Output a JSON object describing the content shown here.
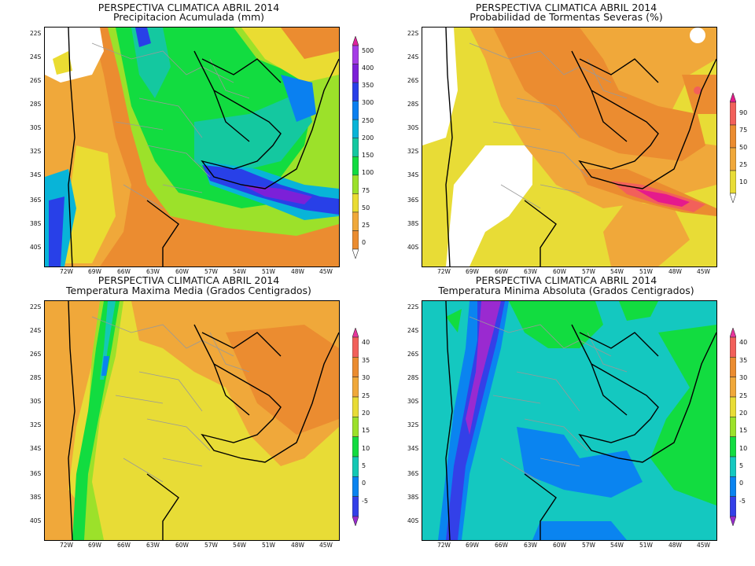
{
  "panels": [
    {
      "title1": "PERSPECTIVA CLIMATICA ABRIL 2014",
      "title2": "Precipitacion Acumulada (mm)",
      "scale": [
        "500",
        "400",
        "350",
        "300",
        "250",
        "200",
        "150",
        "100",
        "75",
        "50",
        "25",
        "0"
      ],
      "colors": [
        "#e0209c",
        "#a43ce6",
        "#7c20d8",
        "#2840e8",
        "#0a80f0",
        "#08b4d8",
        "#14c8a0",
        "#12dc40",
        "#9ce12a",
        "#eadc32",
        "#f0a83a",
        "#eb8c30",
        "#ffffff"
      ],
      "ends": [
        "#e8349c",
        "#ffffff"
      ]
    },
    {
      "title1": "PERSPECTIVA CLIMATICA ABRIL 2014",
      "title2": "Probabilidad de Tormentas Severas (%)",
      "scale": [
        "90",
        "75",
        "50",
        "25",
        "10"
      ],
      "colors": [
        "#e51a8c",
        "#f2605a",
        "#eb8c30",
        "#f0a83a",
        "#e8dc36",
        "#ffffff"
      ],
      "ends": [
        "#e51a8c",
        "#ffffff"
      ]
    },
    {
      "title1": "PERSPECTIVA CLIMATICA ABRIL 2014",
      "title2": "Temperatura Maxima Media (Grados Centigrados)",
      "scale": [
        "40",
        "35",
        "30",
        "25",
        "20",
        "15",
        "10",
        "5",
        "0",
        "-5"
      ],
      "colors": [
        "#e8349c",
        "#f2605a",
        "#eb8c30",
        "#f0a83a",
        "#e8dc36",
        "#9ce12a",
        "#12dc40",
        "#14c8b4",
        "#0a84f0",
        "#3340e8",
        "#9a2ad0"
      ],
      "ends": [
        "#e8349c",
        "#9a2ad0"
      ]
    },
    {
      "title1": "PERSPECTIVA CLIMATICA ABRIL 2014",
      "title2": "Temperatura Minima Absoluta (Grados Centigrados)",
      "scale": [
        "40",
        "35",
        "30",
        "25",
        "20",
        "15",
        "10",
        "5",
        "0",
        "-5"
      ],
      "colors": [
        "#e8349c",
        "#f2605a",
        "#eb8c30",
        "#f0a83a",
        "#e8dc36",
        "#9ce12a",
        "#12dc40",
        "#14c8c0",
        "#0a84f0",
        "#3340e8",
        "#9a2ad0"
      ],
      "ends": [
        "#e8349c",
        "#9a2ad0"
      ]
    }
  ],
  "lat_labels": [
    "22S",
    "24S",
    "26S",
    "28S",
    "30S",
    "32S",
    "34S",
    "36S",
    "38S",
    "40S"
  ],
  "lon_labels": [
    "72W",
    "69W",
    "66W",
    "63W",
    "60W",
    "57W",
    "54W",
    "51W",
    "48W",
    "45W"
  ]
}
